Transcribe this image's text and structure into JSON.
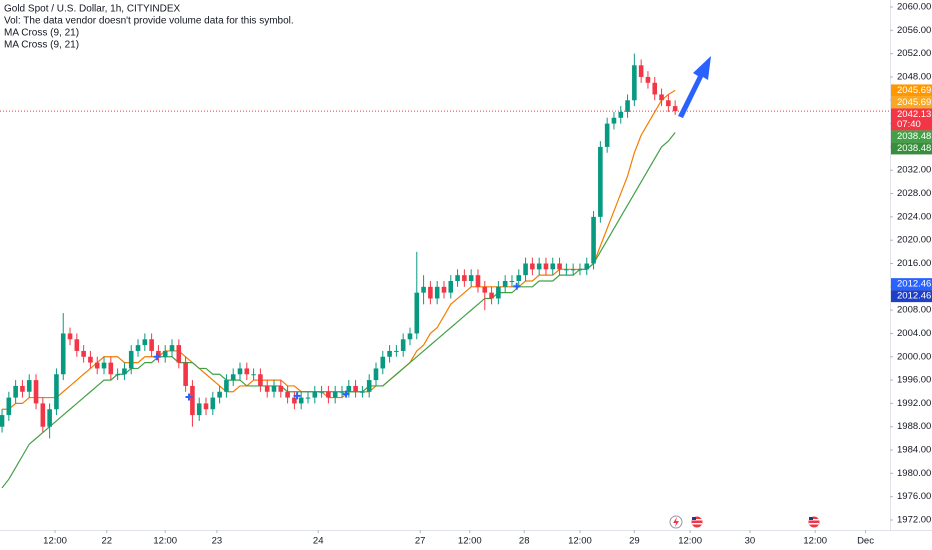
{
  "chart_data": {
    "type": "candlestick",
    "title": "Gold Spot / U.S. Dollar, 1h, CITYINDEX",
    "subtitle": "Vol: The data vendor doesn't provide volume data for this symbol.",
    "indicators": [
      "MA Cross (9, 21)",
      "MA Cross (9, 21)"
    ],
    "up_color": "#089981",
    "down_color": "#f23645",
    "open": [
      1988,
      1990,
      1993,
      1995,
      1994,
      1996,
      1992,
      1988,
      1991,
      1997,
      2004,
      2003,
      2001,
      2000,
      1999,
      1998,
      1999,
      1997,
      1997,
      1998,
      2001,
      2002,
      2003,
      2001,
      2000,
      2001,
      2002,
      1999,
      1995,
      1990,
      1992,
      1991,
      1993,
      1994,
      1996,
      1997,
      1998,
      1997,
      1997,
      1995,
      1994,
      1995,
      1994,
      1993,
      1992,
      1993,
      1993,
      1994,
      1994,
      1993,
      1994,
      1994,
      1995,
      1994,
      1994,
      1996,
      1998,
      2000,
      2001,
      2001,
      2003,
      2004,
      2011,
      2012,
      2010,
      2012,
      2011,
      2013,
      2014,
      2013,
      2014,
      2012,
      2011,
      2010,
      2012,
      2013,
      2013,
      2014,
      2016,
      2015,
      2016,
      2015,
      2016,
      2015,
      2015,
      2015,
      2015,
      2016,
      2024,
      2036,
      2040,
      2041,
      2042,
      2044,
      2050,
      2048,
      2047,
      2045,
      2044,
      2043
    ],
    "high": [
      1991,
      1994,
      1996,
      1996,
      1997,
      1997,
      1993,
      1992,
      1998,
      2007.5,
      2005,
      2004,
      2002,
      2001,
      2000,
      2000,
      2000,
      1998,
      1999,
      2002,
      2003,
      2004,
      2004,
      2002,
      2002,
      2003,
      2003,
      2000,
      1996,
      1993,
      1993,
      1994,
      1995,
      1997,
      1998,
      1999,
      1999,
      1998,
      1998,
      1996,
      1996,
      1996,
      1995,
      1994,
      1994,
      1994,
      1995,
      1995,
      1995,
      1995,
      1995,
      1996,
      1996,
      1995,
      1997,
      1999,
      2001,
      2002,
      2002,
      2004,
      2005,
      2018,
      2014,
      2013,
      2013,
      2013,
      2014,
      2015,
      2015,
      2015,
      2015,
      2013,
      2012,
      2013,
      2014,
      2014,
      2015,
      2017,
      2017,
      2017,
      2017,
      2017,
      2017,
      2016,
      2016,
      2016,
      2017,
      2025,
      2037,
      2041,
      2042,
      2043,
      2045,
      2052,
      2051,
      2049,
      2048,
      2046,
      2045,
      2044
    ],
    "low": [
      1987,
      1989,
      1992,
      1993,
      1993,
      1991,
      1987,
      1986,
      1990,
      1996,
      2002,
      2000,
      1999,
      1998,
      1997,
      1997,
      1996,
      1996,
      1996,
      1997,
      2000,
      2001,
      2000,
      1999,
      1999,
      2000,
      1998,
      1994,
      1988,
      1989,
      1990,
      1990,
      1992,
      1993,
      1995,
      1996,
      1996,
      1996,
      1994,
      1993,
      1993,
      1993,
      1992,
      1991,
      1991,
      1992,
      1992,
      1993,
      1992,
      1992,
      1993,
      1993,
      1993,
      1993,
      1993,
      1995,
      1997,
      1999,
      2000,
      2000,
      2002,
      2003,
      2009,
      2009,
      2009,
      2010,
      2010,
      2012,
      2012,
      2012,
      2011,
      2008,
      2009,
      2009,
      2011,
      2012,
      2012,
      2013,
      2014,
      2014,
      2014,
      2014,
      2014,
      2014,
      2014,
      2014,
      2014,
      2015,
      2023,
      2035,
      2039,
      2040,
      2041,
      2043,
      2047,
      2046,
      2044,
      2043,
      2042,
      2041.5
    ],
    "close": [
      1990,
      1993,
      1995,
      1994,
      1996,
      1992,
      1988,
      1991,
      1997,
      2004,
      2003,
      2001,
      2000,
      1999,
      1998,
      1999,
      1997,
      1997,
      1998,
      2001,
      2002,
      2003,
      2001,
      2000,
      2001,
      2002,
      1999,
      1995,
      1990,
      1992,
      1991,
      1993,
      1994,
      1996,
      1997,
      1998,
      1997,
      1997,
      1995,
      1994,
      1995,
      1994,
      1993,
      1992,
      1993,
      1993,
      1994,
      1994,
      1993,
      1994,
      1994,
      1995,
      1994,
      1994,
      1996,
      1998,
      2000,
      2001,
      2001,
      2003,
      2004,
      2011,
      2012,
      2010,
      2012,
      2011,
      2013,
      2014,
      2013,
      2014,
      2012,
      2011,
      2010,
      2012,
      2013,
      2013,
      2014,
      2016,
      2015,
      2016,
      2015,
      2016,
      2015,
      2015,
      2015,
      2015,
      2016,
      2024,
      2036,
      2040,
      2041,
      2042,
      2044,
      2050,
      2048,
      2047,
      2045,
      2044,
      2043,
      2042.13
    ],
    "ma_lines": [
      {
        "color": "#f57c00",
        "values": [
          1991,
          1991,
          1992,
          1992,
          1993,
          1993,
          1993,
          1993,
          1993,
          1994,
          1995,
          1996,
          1997,
          1998,
          1999,
          2000,
          2000,
          2000,
          1999,
          1999,
          1999,
          2000,
          2000,
          2000,
          2001,
          2001,
          2001,
          2000,
          1999,
          1998,
          1997,
          1996,
          1995,
          1994,
          1994,
          1995,
          1995,
          1996,
          1996,
          1996,
          1996,
          1996,
          1995,
          1995,
          1994,
          1994,
          1994,
          1994,
          1993,
          1993,
          1993,
          1994,
          1994,
          1994,
          1994,
          1995,
          1995,
          1996,
          1997,
          1998,
          1999,
          2001,
          2002,
          2004,
          2005,
          2007,
          2009,
          2010,
          2011,
          2012,
          2012,
          2012,
          2012,
          2012,
          2012,
          2012,
          2012,
          2013,
          2013,
          2014,
          2014,
          2014,
          2015,
          2015,
          2015,
          2015,
          2015,
          2016,
          2019,
          2022,
          2025,
          2028,
          2031,
          2035,
          2038,
          2040,
          2042,
          2044,
          2045,
          2045.69
        ]
      },
      {
        "color": "#43a047",
        "values": [
          1977.5,
          1979,
          1981,
          1983,
          1985,
          1986,
          1987,
          1988,
          1989,
          1990,
          1991,
          1992,
          1993,
          1994,
          1995,
          1996,
          1996,
          1997,
          1997,
          1998,
          1998,
          1999,
          1999,
          2000,
          2000,
          2000,
          1999,
          1999,
          1999,
          1998,
          1998,
          1997,
          1997,
          1996,
          1996,
          1996,
          1995,
          1995,
          1995,
          1995,
          1995,
          1995,
          1994,
          1994,
          1994,
          1994,
          1994,
          1994,
          1994,
          1994,
          1994,
          1994,
          1994,
          1994,
          1995,
          1995,
          1995,
          1996,
          1997,
          1998,
          1999,
          2000,
          2001,
          2002,
          2003,
          2004,
          2005,
          2006,
          2007,
          2008,
          2009,
          2010,
          2010,
          2011,
          2011,
          2011,
          2012,
          2012,
          2012,
          2013,
          2013,
          2013,
          2014,
          2014,
          2014,
          2015,
          2015,
          2016,
          2018,
          2020,
          2022,
          2024,
          2026,
          2028,
          2030,
          2032,
          2034,
          2036,
          2037,
          2038.48
        ]
      }
    ],
    "cross_markers": {
      "color": "#2962ff",
      "x": [
        22.8,
        27.5,
        43.4,
        50.6,
        75.7
      ],
      "y": [
        2000,
        1993.1,
        1993.3,
        1993.6,
        2012.1
      ]
    },
    "countdown": "07:40",
    "price_labels": [
      {
        "value": 2045.69,
        "color": "#ff9800"
      },
      {
        "value": 2045.69,
        "color": "#f9a825"
      },
      {
        "value": 2042.13,
        "color": "#f23645"
      },
      {
        "value": 2038.48,
        "color": "#43a047"
      },
      {
        "value": 2038.48,
        "color": "#388e3c"
      },
      {
        "value": 2012.46,
        "color": "#2962ff"
      },
      {
        "value": 2012.46,
        "color": "#1e40c8"
      }
    ],
    "xlim": [
      -0.3,
      130.6
    ],
    "ylim": [
      1972,
      2060
    ],
    "xticks": [
      {
        "value": 7.8,
        "label": "12:00"
      },
      {
        "value": 15.4,
        "label": "22"
      },
      {
        "value": 24,
        "label": "12:00"
      },
      {
        "value": 31.6,
        "label": "23"
      },
      {
        "value": 46.5,
        "label": "24"
      },
      {
        "value": 61.5,
        "label": "27"
      },
      {
        "value": 68.8,
        "label": "12:00"
      },
      {
        "value": 76.8,
        "label": "28"
      },
      {
        "value": 85,
        "label": "12:00"
      },
      {
        "value": 93,
        "label": "29"
      },
      {
        "value": 101.2,
        "label": "12:00"
      },
      {
        "value": 110,
        "label": "30"
      },
      {
        "value": 119.6,
        "label": "12:00"
      },
      {
        "value": 127,
        "label": "Dec"
      }
    ],
    "yticks": [
      {
        "value": 2060,
        "label": "2060.00"
      },
      {
        "value": 2056,
        "label": "2056.00"
      },
      {
        "value": 2052,
        "label": "2052.00"
      },
      {
        "value": 2048,
        "label": "2048.00"
      },
      {
        "value": 2044,
        "label": "2044.00"
      },
      {
        "value": 2040,
        "label": "2040.00"
      },
      {
        "value": 2036,
        "label": "2036.00"
      },
      {
        "value": 2032,
        "label": "2032.00"
      },
      {
        "value": 2028,
        "label": "2028.00"
      },
      {
        "value": 2024,
        "label": "2024.00"
      },
      {
        "value": 2020,
        "label": "2020.00"
      },
      {
        "value": 2016,
        "label": "2016.00"
      },
      {
        "value": 2012,
        "label": "2012.00"
      },
      {
        "value": 2008,
        "label": "2008.00"
      },
      {
        "value": 2004,
        "label": "2004.00"
      },
      {
        "value": 2000,
        "label": "2000.00"
      },
      {
        "value": 1996,
        "label": "1996.00"
      },
      {
        "value": 1992,
        "label": "1992.00"
      },
      {
        "value": 1988,
        "label": "1988.00"
      },
      {
        "value": 1984,
        "label": "1984.00"
      },
      {
        "value": 1980,
        "label": "1980.00"
      },
      {
        "value": 1976,
        "label": "1976.00"
      },
      {
        "value": 1972,
        "label": "1972.00"
      }
    ],
    "grid": false
  }
}
